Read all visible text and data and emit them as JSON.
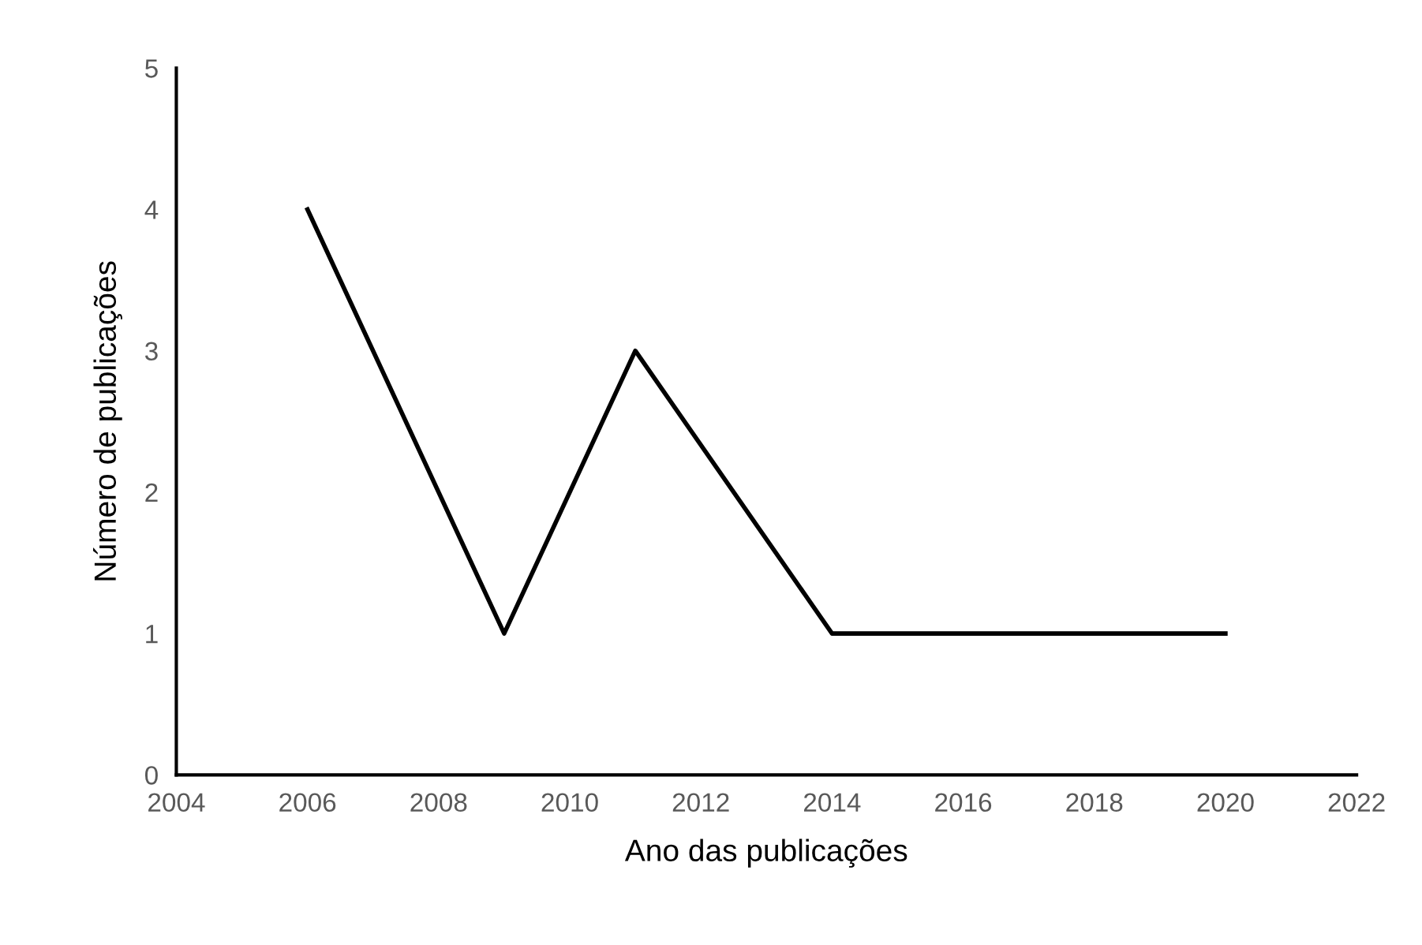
{
  "chart_data": {
    "type": "line",
    "xlabel": "Ano das publicações",
    "ylabel": "Número de publicações",
    "x": [
      2006,
      2009,
      2011,
      2014,
      2020
    ],
    "series": [
      {
        "color": "#000000",
        "values": [
          4,
          1,
          3,
          1,
          1
        ]
      }
    ],
    "xlim": [
      2004,
      2022
    ],
    "xticks": [
      2004,
      2006,
      2008,
      2010,
      2012,
      2014,
      2016,
      2018,
      2020,
      2022
    ],
    "ylim": [
      0,
      5
    ],
    "yticks": [
      0,
      1,
      2,
      3,
      4,
      5
    ],
    "grid": false,
    "legend": false,
    "marker": "none",
    "line_style": "solid"
  }
}
